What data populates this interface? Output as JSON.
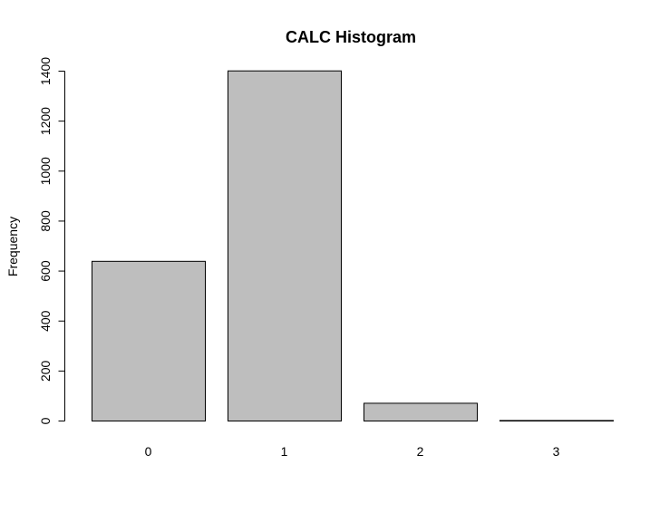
{
  "chart_data": {
    "type": "bar",
    "title": "CALC Histogram",
    "xlabel": "",
    "ylabel": "Frequency",
    "categories": [
      "0",
      "1",
      "2",
      "3"
    ],
    "values": [
      639,
      1401,
      71,
      2
    ],
    "yticks": [
      0,
      200,
      400,
      600,
      800,
      1000,
      1200,
      1400
    ],
    "ylim": [
      0,
      1400
    ],
    "grid": false,
    "bar_color": "#bebebe",
    "border_color": "#000000"
  }
}
